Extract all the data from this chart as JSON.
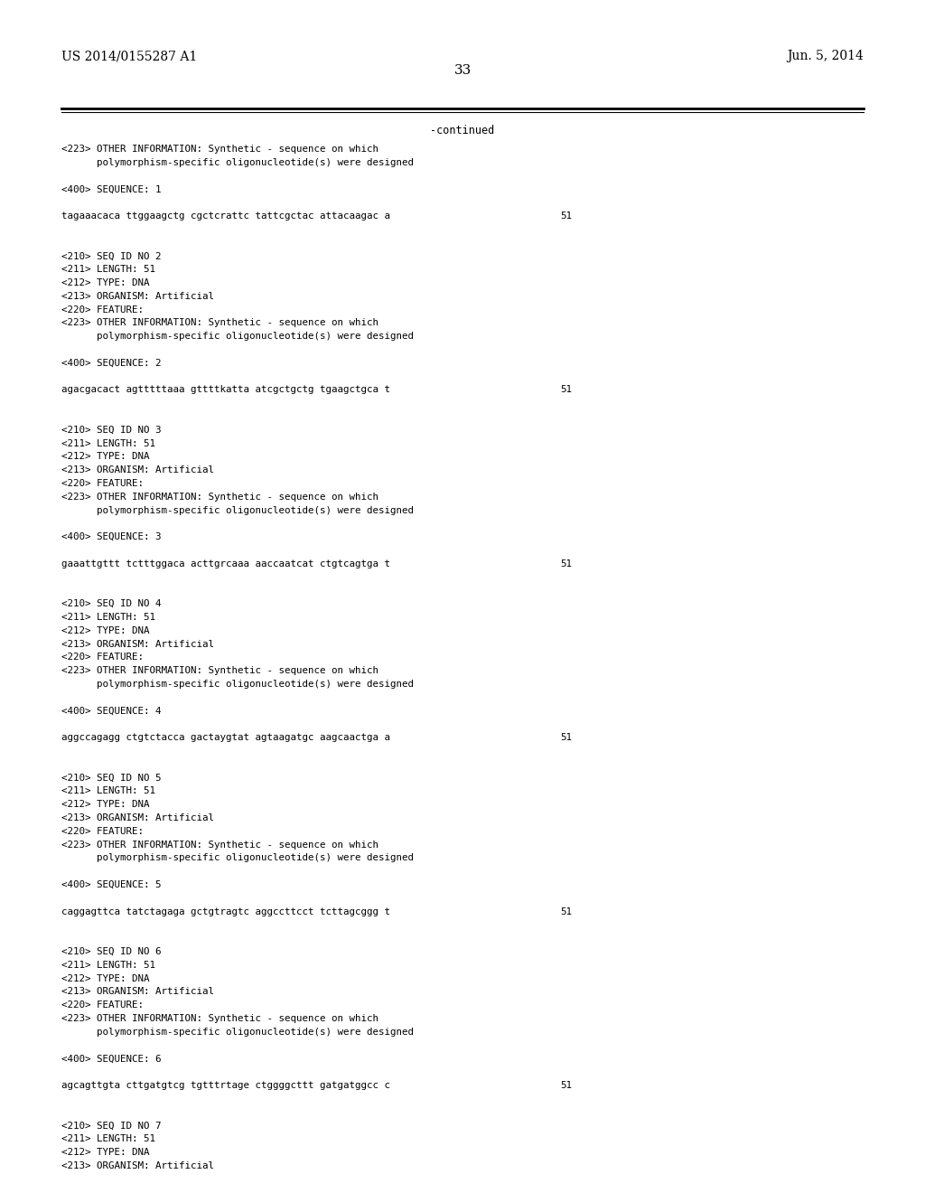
{
  "background_color": "#ffffff",
  "header_left": "US 2014/0155287 A1",
  "header_right": "Jun. 5, 2014",
  "page_number": "33",
  "continued_label": "-continued",
  "header_font_size": 10,
  "page_num_font_size": 11,
  "mono_font_size": 7.8,
  "continued_font_size": 8.5,
  "content": [
    {
      "type": "text",
      "text": "<223> OTHER INFORMATION: Synthetic - sequence on which"
    },
    {
      "type": "text",
      "text": "      polymorphism-specific oligonucleotide(s) were designed"
    },
    {
      "type": "blank"
    },
    {
      "type": "text",
      "text": "<400> SEQUENCE: 1"
    },
    {
      "type": "blank"
    },
    {
      "type": "seq",
      "text": "tagaaacaca ttggaagctg cgctcrattc tattcgctac attacaagac a",
      "num": "51"
    },
    {
      "type": "blank"
    },
    {
      "type": "blank"
    },
    {
      "type": "text",
      "text": "<210> SEQ ID NO 2"
    },
    {
      "type": "text",
      "text": "<211> LENGTH: 51"
    },
    {
      "type": "text",
      "text": "<212> TYPE: DNA"
    },
    {
      "type": "text",
      "text": "<213> ORGANISM: Artificial"
    },
    {
      "type": "text",
      "text": "<220> FEATURE:"
    },
    {
      "type": "text",
      "text": "<223> OTHER INFORMATION: Synthetic - sequence on which"
    },
    {
      "type": "text",
      "text": "      polymorphism-specific oligonucleotide(s) were designed"
    },
    {
      "type": "blank"
    },
    {
      "type": "text",
      "text": "<400> SEQUENCE: 2"
    },
    {
      "type": "blank"
    },
    {
      "type": "seq",
      "text": "agacgacact agtttttaaa gttttkatta atcgctgctg tgaagctgca t",
      "num": "51"
    },
    {
      "type": "blank"
    },
    {
      "type": "blank"
    },
    {
      "type": "text",
      "text": "<210> SEQ ID NO 3"
    },
    {
      "type": "text",
      "text": "<211> LENGTH: 51"
    },
    {
      "type": "text",
      "text": "<212> TYPE: DNA"
    },
    {
      "type": "text",
      "text": "<213> ORGANISM: Artificial"
    },
    {
      "type": "text",
      "text": "<220> FEATURE:"
    },
    {
      "type": "text",
      "text": "<223> OTHER INFORMATION: Synthetic - sequence on which"
    },
    {
      "type": "text",
      "text": "      polymorphism-specific oligonucleotide(s) were designed"
    },
    {
      "type": "blank"
    },
    {
      "type": "text",
      "text": "<400> SEQUENCE: 3"
    },
    {
      "type": "blank"
    },
    {
      "type": "seq",
      "text": "gaaattgttt tctttggaca acttgrcaaa aaccaatcat ctgtcagtga t",
      "num": "51"
    },
    {
      "type": "blank"
    },
    {
      "type": "blank"
    },
    {
      "type": "text",
      "text": "<210> SEQ ID NO 4"
    },
    {
      "type": "text",
      "text": "<211> LENGTH: 51"
    },
    {
      "type": "text",
      "text": "<212> TYPE: DNA"
    },
    {
      "type": "text",
      "text": "<213> ORGANISM: Artificial"
    },
    {
      "type": "text",
      "text": "<220> FEATURE:"
    },
    {
      "type": "text",
      "text": "<223> OTHER INFORMATION: Synthetic - sequence on which"
    },
    {
      "type": "text",
      "text": "      polymorphism-specific oligonucleotide(s) were designed"
    },
    {
      "type": "blank"
    },
    {
      "type": "text",
      "text": "<400> SEQUENCE: 4"
    },
    {
      "type": "blank"
    },
    {
      "type": "seq",
      "text": "aggccagagg ctgtctacca gactaygtat agtaagatgc aagcaactga a",
      "num": "51"
    },
    {
      "type": "blank"
    },
    {
      "type": "blank"
    },
    {
      "type": "text",
      "text": "<210> SEQ ID NO 5"
    },
    {
      "type": "text",
      "text": "<211> LENGTH: 51"
    },
    {
      "type": "text",
      "text": "<212> TYPE: DNA"
    },
    {
      "type": "text",
      "text": "<213> ORGANISM: Artificial"
    },
    {
      "type": "text",
      "text": "<220> FEATURE:"
    },
    {
      "type": "text",
      "text": "<223> OTHER INFORMATION: Synthetic - sequence on which"
    },
    {
      "type": "text",
      "text": "      polymorphism-specific oligonucleotide(s) were designed"
    },
    {
      "type": "blank"
    },
    {
      "type": "text",
      "text": "<400> SEQUENCE: 5"
    },
    {
      "type": "blank"
    },
    {
      "type": "seq",
      "text": "caggagttca tatctagaga gctgtragtc aggccttcct tcttagcggg t",
      "num": "51"
    },
    {
      "type": "blank"
    },
    {
      "type": "blank"
    },
    {
      "type": "text",
      "text": "<210> SEQ ID NO 6"
    },
    {
      "type": "text",
      "text": "<211> LENGTH: 51"
    },
    {
      "type": "text",
      "text": "<212> TYPE: DNA"
    },
    {
      "type": "text",
      "text": "<213> ORGANISM: Artificial"
    },
    {
      "type": "text",
      "text": "<220> FEATURE:"
    },
    {
      "type": "text",
      "text": "<223> OTHER INFORMATION: Synthetic - sequence on which"
    },
    {
      "type": "text",
      "text": "      polymorphism-specific oligonucleotide(s) were designed"
    },
    {
      "type": "blank"
    },
    {
      "type": "text",
      "text": "<400> SEQUENCE: 6"
    },
    {
      "type": "blank"
    },
    {
      "type": "seq",
      "text": "agcagttgta cttgatgtcg tgtttrtage ctggggcttt gatgatggcc c",
      "num": "51"
    },
    {
      "type": "blank"
    },
    {
      "type": "blank"
    },
    {
      "type": "text",
      "text": "<210> SEQ ID NO 7"
    },
    {
      "type": "text",
      "text": "<211> LENGTH: 51"
    },
    {
      "type": "text",
      "text": "<212> TYPE: DNA"
    },
    {
      "type": "text",
      "text": "<213> ORGANISM: Artificial"
    }
  ]
}
